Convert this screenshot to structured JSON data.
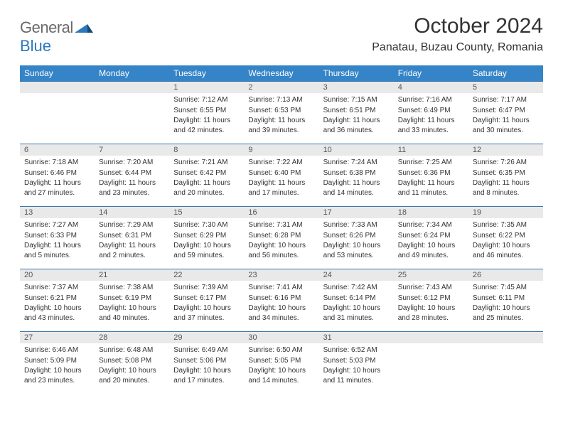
{
  "logo": {
    "part1": "General",
    "part2": "Blue"
  },
  "header": {
    "title": "October 2024",
    "location": "Panatau, Buzau County, Romania"
  },
  "colors": {
    "header_bg": "#3584c7",
    "header_text": "#ffffff",
    "daybar_bg": "#e9e9e9",
    "daybar_border": "#3a78b0",
    "logo_gray": "#6a6a6a",
    "logo_blue": "#2d78bd",
    "body_text": "#333333"
  },
  "typography": {
    "title_fontsize": 30,
    "location_fontsize": 16,
    "dayheader_fontsize": 12,
    "daynum_fontsize": 11,
    "cell_fontsize": 10
  },
  "day_headers": [
    "Sunday",
    "Monday",
    "Tuesday",
    "Wednesday",
    "Thursday",
    "Friday",
    "Saturday"
  ],
  "weeks": [
    [
      null,
      null,
      {
        "num": "1",
        "sunrise": "Sunrise: 7:12 AM",
        "sunset": "Sunset: 6:55 PM",
        "daylight": "Daylight: 11 hours and 42 minutes."
      },
      {
        "num": "2",
        "sunrise": "Sunrise: 7:13 AM",
        "sunset": "Sunset: 6:53 PM",
        "daylight": "Daylight: 11 hours and 39 minutes."
      },
      {
        "num": "3",
        "sunrise": "Sunrise: 7:15 AM",
        "sunset": "Sunset: 6:51 PM",
        "daylight": "Daylight: 11 hours and 36 minutes."
      },
      {
        "num": "4",
        "sunrise": "Sunrise: 7:16 AM",
        "sunset": "Sunset: 6:49 PM",
        "daylight": "Daylight: 11 hours and 33 minutes."
      },
      {
        "num": "5",
        "sunrise": "Sunrise: 7:17 AM",
        "sunset": "Sunset: 6:47 PM",
        "daylight": "Daylight: 11 hours and 30 minutes."
      }
    ],
    [
      {
        "num": "6",
        "sunrise": "Sunrise: 7:18 AM",
        "sunset": "Sunset: 6:46 PM",
        "daylight": "Daylight: 11 hours and 27 minutes."
      },
      {
        "num": "7",
        "sunrise": "Sunrise: 7:20 AM",
        "sunset": "Sunset: 6:44 PM",
        "daylight": "Daylight: 11 hours and 23 minutes."
      },
      {
        "num": "8",
        "sunrise": "Sunrise: 7:21 AM",
        "sunset": "Sunset: 6:42 PM",
        "daylight": "Daylight: 11 hours and 20 minutes."
      },
      {
        "num": "9",
        "sunrise": "Sunrise: 7:22 AM",
        "sunset": "Sunset: 6:40 PM",
        "daylight": "Daylight: 11 hours and 17 minutes."
      },
      {
        "num": "10",
        "sunrise": "Sunrise: 7:24 AM",
        "sunset": "Sunset: 6:38 PM",
        "daylight": "Daylight: 11 hours and 14 minutes."
      },
      {
        "num": "11",
        "sunrise": "Sunrise: 7:25 AM",
        "sunset": "Sunset: 6:36 PM",
        "daylight": "Daylight: 11 hours and 11 minutes."
      },
      {
        "num": "12",
        "sunrise": "Sunrise: 7:26 AM",
        "sunset": "Sunset: 6:35 PM",
        "daylight": "Daylight: 11 hours and 8 minutes."
      }
    ],
    [
      {
        "num": "13",
        "sunrise": "Sunrise: 7:27 AM",
        "sunset": "Sunset: 6:33 PM",
        "daylight": "Daylight: 11 hours and 5 minutes."
      },
      {
        "num": "14",
        "sunrise": "Sunrise: 7:29 AM",
        "sunset": "Sunset: 6:31 PM",
        "daylight": "Daylight: 11 hours and 2 minutes."
      },
      {
        "num": "15",
        "sunrise": "Sunrise: 7:30 AM",
        "sunset": "Sunset: 6:29 PM",
        "daylight": "Daylight: 10 hours and 59 minutes."
      },
      {
        "num": "16",
        "sunrise": "Sunrise: 7:31 AM",
        "sunset": "Sunset: 6:28 PM",
        "daylight": "Daylight: 10 hours and 56 minutes."
      },
      {
        "num": "17",
        "sunrise": "Sunrise: 7:33 AM",
        "sunset": "Sunset: 6:26 PM",
        "daylight": "Daylight: 10 hours and 53 minutes."
      },
      {
        "num": "18",
        "sunrise": "Sunrise: 7:34 AM",
        "sunset": "Sunset: 6:24 PM",
        "daylight": "Daylight: 10 hours and 49 minutes."
      },
      {
        "num": "19",
        "sunrise": "Sunrise: 7:35 AM",
        "sunset": "Sunset: 6:22 PM",
        "daylight": "Daylight: 10 hours and 46 minutes."
      }
    ],
    [
      {
        "num": "20",
        "sunrise": "Sunrise: 7:37 AM",
        "sunset": "Sunset: 6:21 PM",
        "daylight": "Daylight: 10 hours and 43 minutes."
      },
      {
        "num": "21",
        "sunrise": "Sunrise: 7:38 AM",
        "sunset": "Sunset: 6:19 PM",
        "daylight": "Daylight: 10 hours and 40 minutes."
      },
      {
        "num": "22",
        "sunrise": "Sunrise: 7:39 AM",
        "sunset": "Sunset: 6:17 PM",
        "daylight": "Daylight: 10 hours and 37 minutes."
      },
      {
        "num": "23",
        "sunrise": "Sunrise: 7:41 AM",
        "sunset": "Sunset: 6:16 PM",
        "daylight": "Daylight: 10 hours and 34 minutes."
      },
      {
        "num": "24",
        "sunrise": "Sunrise: 7:42 AM",
        "sunset": "Sunset: 6:14 PM",
        "daylight": "Daylight: 10 hours and 31 minutes."
      },
      {
        "num": "25",
        "sunrise": "Sunrise: 7:43 AM",
        "sunset": "Sunset: 6:12 PM",
        "daylight": "Daylight: 10 hours and 28 minutes."
      },
      {
        "num": "26",
        "sunrise": "Sunrise: 7:45 AM",
        "sunset": "Sunset: 6:11 PM",
        "daylight": "Daylight: 10 hours and 25 minutes."
      }
    ],
    [
      {
        "num": "27",
        "sunrise": "Sunrise: 6:46 AM",
        "sunset": "Sunset: 5:09 PM",
        "daylight": "Daylight: 10 hours and 23 minutes."
      },
      {
        "num": "28",
        "sunrise": "Sunrise: 6:48 AM",
        "sunset": "Sunset: 5:08 PM",
        "daylight": "Daylight: 10 hours and 20 minutes."
      },
      {
        "num": "29",
        "sunrise": "Sunrise: 6:49 AM",
        "sunset": "Sunset: 5:06 PM",
        "daylight": "Daylight: 10 hours and 17 minutes."
      },
      {
        "num": "30",
        "sunrise": "Sunrise: 6:50 AM",
        "sunset": "Sunset: 5:05 PM",
        "daylight": "Daylight: 10 hours and 14 minutes."
      },
      {
        "num": "31",
        "sunrise": "Sunrise: 6:52 AM",
        "sunset": "Sunset: 5:03 PM",
        "daylight": "Daylight: 10 hours and 11 minutes."
      },
      null,
      null
    ]
  ]
}
